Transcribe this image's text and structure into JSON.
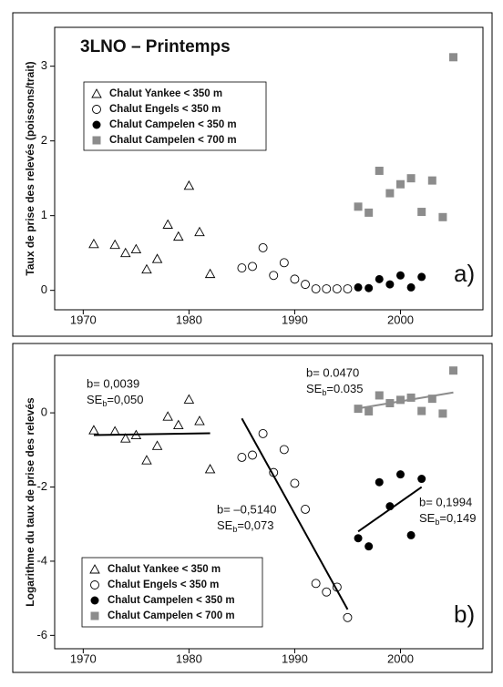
{
  "chart_data": [
    {
      "type": "scatter",
      "title": "3LNO – Printemps",
      "ylabel": "Taux de prise des relevés (poissons/trait)",
      "panel_label": "a)",
      "xlim": [
        1967.3,
        2007.8
      ],
      "xticks": [
        1970,
        1980,
        1990,
        2000
      ],
      "ylim": [
        -0.26,
        3.52
      ],
      "yticks": [
        0,
        1,
        2,
        3
      ],
      "series": [
        {
          "name": "Chalut Yankee < 350 m",
          "marker": "triangle",
          "color": "#000000",
          "x": [
            1971,
            1973,
            1974,
            1975,
            1976,
            1977,
            1978,
            1979,
            1980,
            1981,
            1982
          ],
          "values": [
            0.62,
            0.61,
            0.5,
            0.55,
            0.28,
            0.42,
            0.88,
            0.72,
            1.4,
            0.78,
            0.22
          ]
        },
        {
          "name": "Chalut Engels < 350 m",
          "marker": "circle-open",
          "color": "#000000",
          "x": [
            1985,
            1986,
            1987,
            1988,
            1989,
            1990,
            1991,
            1992,
            1993,
            1994,
            1995
          ],
          "values": [
            0.3,
            0.32,
            0.57,
            0.2,
            0.37,
            0.15,
            0.08,
            0.02,
            0.02,
            0.02,
            0.02
          ]
        },
        {
          "name": "Chalut Campelen < 350 m",
          "marker": "circle-filled",
          "color": "#000000",
          "x": [
            1996,
            1997,
            1998,
            1999,
            2000,
            2001,
            2002
          ],
          "values": [
            0.04,
            0.03,
            0.15,
            0.08,
            0.2,
            0.04,
            0.18
          ]
        },
        {
          "name": "Chalut Campelen < 700 m",
          "marker": "square",
          "color": "#8c8c8c",
          "x": [
            1996,
            1997,
            1998,
            1999,
            2000,
            2001,
            2002,
            2003,
            2004,
            2005
          ],
          "values": [
            1.12,
            1.04,
            1.6,
            1.3,
            1.42,
            1.5,
            1.05,
            1.47,
            0.98,
            3.12
          ]
        }
      ]
    },
    {
      "type": "scatter",
      "ylabel": "Logarithme du taux de prise des relevés",
      "panel_label": "b)",
      "xlim": [
        1967.3,
        2007.8
      ],
      "xticks": [
        1970,
        1980,
        1990,
        2000
      ],
      "ylim": [
        -6.36,
        1.55
      ],
      "yticks": [
        -6,
        -4,
        -2,
        0
      ],
      "series": [
        {
          "name": "Chalut Yankee < 350 m",
          "marker": "triangle",
          "color": "#000000",
          "x": [
            1971,
            1973,
            1974,
            1975,
            1976,
            1977,
            1978,
            1979,
            1980,
            1981,
            1982
          ],
          "values": [
            -0.47,
            -0.5,
            -0.69,
            -0.6,
            -1.28,
            -0.89,
            -0.1,
            -0.33,
            0.36,
            -0.22,
            -1.52
          ]
        },
        {
          "name": "Chalut Engels < 350 m",
          "marker": "circle-open",
          "color": "#000000",
          "x": [
            1985,
            1986,
            1987,
            1988,
            1989,
            1990,
            1991,
            1992,
            1993,
            1994,
            1995
          ],
          "values": [
            -1.2,
            -1.14,
            -0.56,
            -1.61,
            -0.99,
            -1.9,
            -2.6,
            -4.6,
            -4.83,
            -4.7,
            -5.52
          ]
        },
        {
          "name": "Chalut Campelen < 350 m",
          "marker": "circle-filled",
          "color": "#000000",
          "x": [
            1996,
            1997,
            1998,
            1999,
            2000,
            2001,
            2002
          ],
          "values": [
            -3.38,
            -3.6,
            -1.87,
            -2.52,
            -1.66,
            -3.3,
            -1.78
          ]
        },
        {
          "name": "Chalut Campelen < 700 m",
          "marker": "square",
          "color": "#8c8c8c",
          "x": [
            1996,
            1997,
            1998,
            1999,
            2000,
            2001,
            2002,
            2003,
            2004,
            2005
          ],
          "values": [
            0.11,
            0.04,
            0.47,
            0.26,
            0.35,
            0.41,
            0.05,
            0.38,
            -0.02,
            1.14
          ]
        }
      ],
      "trend_lines": [
        {
          "color": "#000000",
          "x": [
            1971,
            1982
          ],
          "values": [
            -0.6,
            -0.55
          ]
        },
        {
          "color": "#000000",
          "x": [
            1985,
            1995
          ],
          "values": [
            -0.15,
            -5.3
          ]
        },
        {
          "color": "#000000",
          "x": [
            1996,
            2002
          ],
          "values": [
            -3.2,
            -2.0
          ]
        },
        {
          "color": "#8c8c8c",
          "x": [
            1996,
            2005
          ],
          "values": [
            0.12,
            0.55
          ]
        }
      ],
      "annotations": [
        {
          "b": "b= 0,0039",
          "se": "SE",
          "sub": "b",
          "se_value": "=0,050"
        },
        {
          "b": "b= 0.0470",
          "se": "SE",
          "sub": "b",
          "se_value": "=0.035"
        },
        {
          "b": "b= –0,5140",
          "se": "SE",
          "sub": "b",
          "se_value": "=0,073"
        },
        {
          "b": "b= 0,1994",
          "se": "SE",
          "sub": "b",
          "se_value": "=0,149"
        }
      ]
    }
  ]
}
